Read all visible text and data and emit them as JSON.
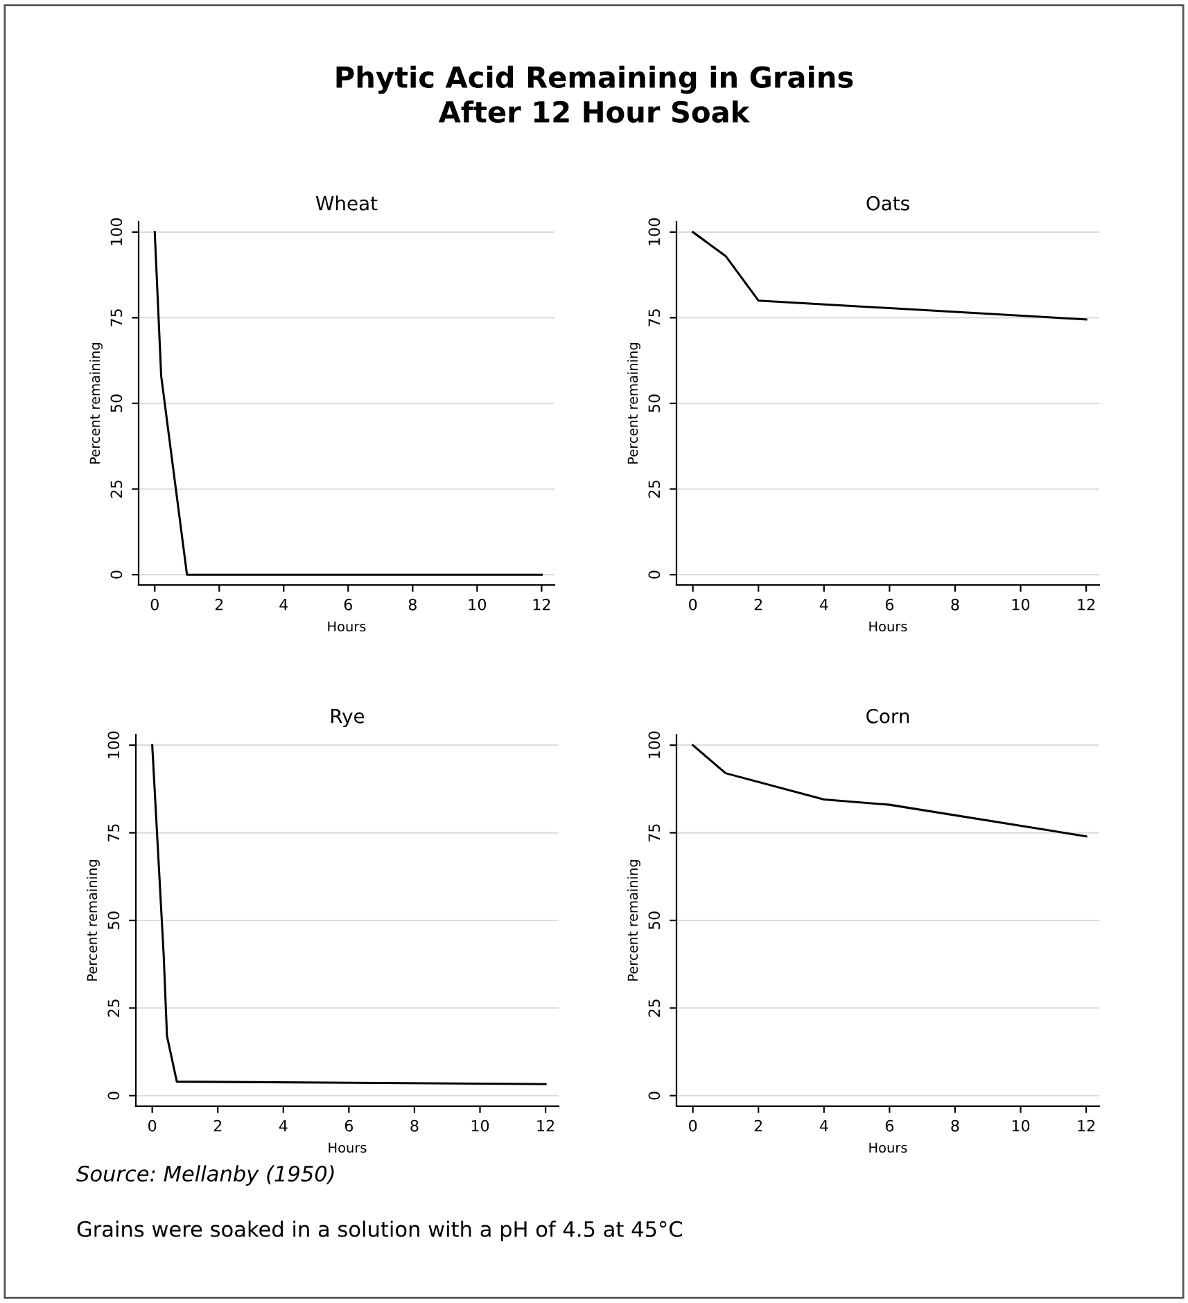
{
  "chart_data": [
    {
      "type": "line",
      "title": "Wheat",
      "xlabel": "Hours",
      "ylabel": "Percent remaining",
      "x": [
        0,
        0.2,
        1,
        12
      ],
      "series": [
        {
          "color": "#000000",
          "values": [
            100,
            58,
            0,
            0
          ]
        }
      ],
      "xlim": [
        -0.5,
        12.4
      ],
      "ylim": [
        -3,
        103
      ],
      "xticks": [
        0,
        2,
        4,
        6,
        8,
        10,
        12
      ],
      "yticks": [
        0,
        25,
        50,
        75,
        100
      ],
      "grid": "y",
      "annotations": [
        "Phytic Acid Remaining in Grains\nAfter 12 Hour Soak"
      ]
    },
    {
      "type": "line",
      "title": "Oats",
      "xlabel": "Hours",
      "ylabel": "Percent remaining",
      "x": [
        0,
        1,
        2,
        12
      ],
      "series": [
        {
          "color": "#000000",
          "values": [
            100,
            93,
            80,
            74.5
          ]
        }
      ],
      "xlim": [
        -0.5,
        12.4
      ],
      "ylim": [
        -3,
        103
      ],
      "xticks": [
        0,
        2,
        4,
        6,
        8,
        10,
        12
      ],
      "yticks": [
        0,
        25,
        50,
        75,
        100
      ],
      "grid": "y"
    },
    {
      "type": "line",
      "title": "Rye",
      "xlabel": "Hours",
      "ylabel": "Percent remaining",
      "x": [
        0,
        0.35,
        0.45,
        0.75,
        12
      ],
      "series": [
        {
          "color": "#000000",
          "values": [
            100,
            40,
            17,
            4,
            3.3
          ]
        }
      ],
      "xlim": [
        -0.5,
        12.4
      ],
      "ylim": [
        -3,
        103
      ],
      "xticks": [
        0,
        2,
        4,
        6,
        8,
        10,
        12
      ],
      "yticks": [
        0,
        25,
        50,
        75,
        100
      ],
      "grid": "y",
      "annotations": [
        "Source: Mellanby (1950)"
      ]
    },
    {
      "type": "line",
      "title": "Corn",
      "xlabel": "Hours",
      "ylabel": "Percent remaining",
      "x": [
        0,
        1,
        4,
        6,
        12
      ],
      "series": [
        {
          "color": "#000000",
          "values": [
            100,
            92,
            84.5,
            83,
            74
          ]
        }
      ],
      "xlim": [
        -0.5,
        12.4
      ],
      "ylim": [
        -3,
        103
      ],
      "xticks": [
        0,
        2,
        4,
        6,
        8,
        10,
        12
      ],
      "yticks": [
        0,
        25,
        50,
        75,
        100
      ],
      "grid": "y",
      "annotations": [
        "Grains were soaked in a solution with a pH of 4.5 at 45°C"
      ]
    }
  ]
}
